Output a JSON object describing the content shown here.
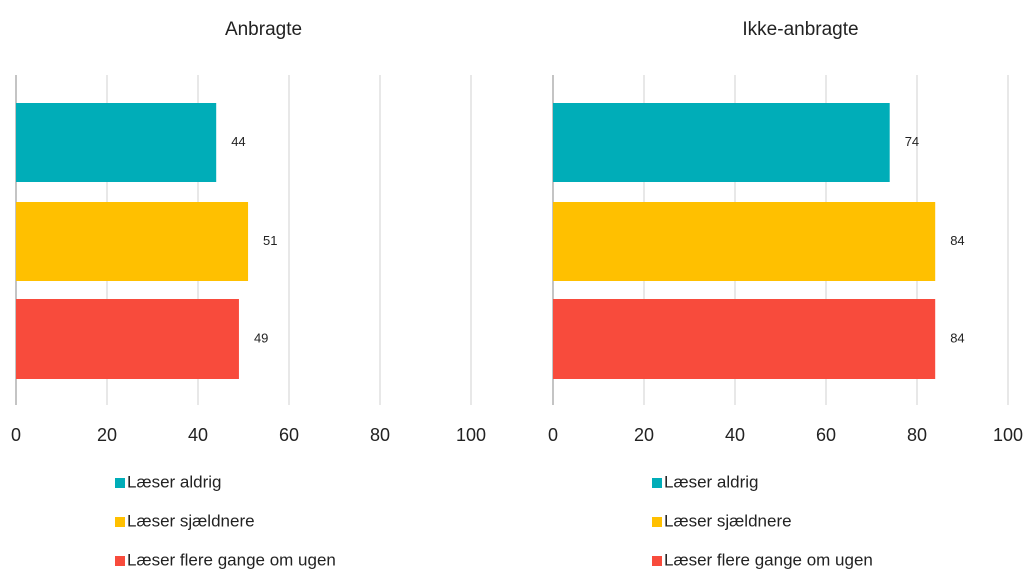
{
  "chart_data": [
    {
      "type": "bar",
      "orientation": "horizontal",
      "title": "Anbragte",
      "series": [
        {
          "name": "Læser aldrig",
          "color": "#00adb8",
          "values": [
            44
          ]
        },
        {
          "name": "Læser sjældnere",
          "color": "#ffc000",
          "values": [
            51
          ]
        },
        {
          "name": "Læser flere gange om ugen",
          "color": "#f84b3c",
          "values": [
            49
          ]
        }
      ],
      "xlim": [
        0,
        100
      ],
      "xticks": [
        0,
        20,
        40,
        60,
        80,
        100
      ],
      "grid": true,
      "legend": "bottom"
    },
    {
      "type": "bar",
      "orientation": "horizontal",
      "title": "Ikke-anbragte",
      "series": [
        {
          "name": "Læser aldrig",
          "color": "#00adb8",
          "values": [
            74
          ]
        },
        {
          "name": "Læser sjældnere",
          "color": "#ffc000",
          "values": [
            84
          ]
        },
        {
          "name": "Læser flere gange om ugen",
          "color": "#f84b3c",
          "values": [
            84
          ]
        }
      ],
      "xlim": [
        0,
        100
      ],
      "xticks": [
        0,
        20,
        40,
        60,
        80,
        100
      ],
      "grid": true,
      "legend": "bottom"
    }
  ]
}
